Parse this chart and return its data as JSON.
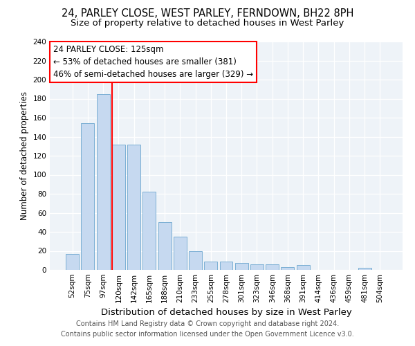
{
  "title": "24, PARLEY CLOSE, WEST PARLEY, FERNDOWN, BH22 8PH",
  "subtitle": "Size of property relative to detached houses in West Parley",
  "xlabel": "Distribution of detached houses by size in West Parley",
  "ylabel": "Number of detached properties",
  "footer_line1": "Contains HM Land Registry data © Crown copyright and database right 2024.",
  "footer_line2": "Contains public sector information licensed under the Open Government Licence v3.0.",
  "bar_labels": [
    "52sqm",
    "75sqm",
    "97sqm",
    "120sqm",
    "142sqm",
    "165sqm",
    "188sqm",
    "210sqm",
    "233sqm",
    "255sqm",
    "278sqm",
    "301sqm",
    "323sqm",
    "346sqm",
    "368sqm",
    "391sqm",
    "414sqm",
    "436sqm",
    "459sqm",
    "481sqm",
    "504sqm"
  ],
  "bar_values": [
    17,
    154,
    185,
    132,
    132,
    82,
    50,
    35,
    20,
    9,
    9,
    7,
    6,
    6,
    3,
    5,
    0,
    0,
    0,
    2,
    0
  ],
  "bar_color": "#c6d9f0",
  "bar_edgecolor": "#7bafd4",
  "vline_x_index": 3,
  "vline_color": "red",
  "annotation_text_line1": "24 PARLEY CLOSE: 125sqm",
  "annotation_text_line2": "← 53% of detached houses are smaller (381)",
  "annotation_text_line3": "46% of semi-detached houses are larger (329) →",
  "annotation_box_color": "white",
  "annotation_box_edgecolor": "red",
  "ylim": [
    0,
    240
  ],
  "yticks": [
    0,
    20,
    40,
    60,
    80,
    100,
    120,
    140,
    160,
    180,
    200,
    220,
    240
  ],
  "background_color": "#eef3f8",
  "title_fontsize": 10.5,
  "subtitle_fontsize": 9.5,
  "xlabel_fontsize": 9.5,
  "ylabel_fontsize": 8.5,
  "tick_fontsize": 7.5,
  "annotation_fontsize": 8.5,
  "footer_fontsize": 7.0
}
